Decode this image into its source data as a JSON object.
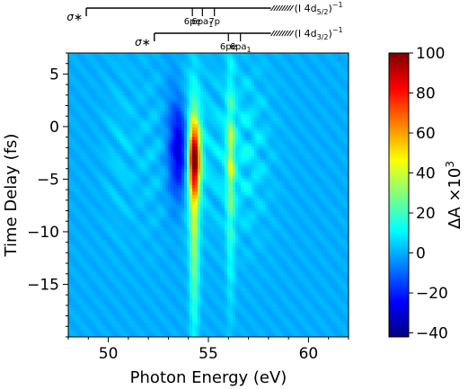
{
  "chart_data": {
    "type": "heatmap",
    "xlabel": "Photon Energy (eV)",
    "ylabel": "Time Delay (fs)",
    "colorbar_label": "ΔA ×10",
    "colorbar_label_sup": "3",
    "xlim": [
      48,
      62
    ],
    "ylim": [
      -20,
      7
    ],
    "x_ticks": [
      50,
      55,
      60
    ],
    "y_ticks": [
      5,
      0,
      -5,
      -10,
      -15
    ],
    "colorbar_range": [
      -42,
      100
    ],
    "colorbar_ticks": [
      100,
      80,
      60,
      40,
      20,
      0,
      -20,
      -40
    ],
    "colormap": "jet",
    "features": [
      {
        "name": "sigma-star-5/2 band",
        "x": 50.6,
        "amplitude": 8,
        "fringes": true
      },
      {
        "name": "sigma-star-3/2 band",
        "x": 52.3,
        "amplitude": 6,
        "fringes": true
      },
      {
        "name": "negative lobe",
        "x": 53.6,
        "amplitude": -38
      },
      {
        "name": "6pe 4d5/2 peak",
        "x": 54.3,
        "amplitude": 95
      },
      {
        "name": "6pe 4d3/2 peak",
        "x": 56.1,
        "amplitude": 30
      },
      {
        "name": "6pa1 4d3/2 band",
        "x": 56.9,
        "amplitude": 12,
        "fringes": true
      }
    ],
    "annotations": {
      "row1": {
        "sigma_label": "σ∗",
        "sigma_x": 48.9,
        "end_x": 59.2,
        "levels": [
          {
            "label": "6pe",
            "x": 54.2
          },
          {
            "label": "6pa",
            "sub": "1",
            "x": 54.7
          },
          {
            "label": "7p",
            "x": 55.3
          }
        ],
        "edge_label": "(I 4d",
        "edge_sub": "5/2",
        "edge_close": ")",
        "edge_sup": "−1"
      },
      "row2": {
        "sigma_label": "σ∗",
        "sigma_x": 52.3,
        "end_x": 59.2,
        "levels": [
          {
            "label": "6pe",
            "x": 56.0
          },
          {
            "label": "6pa",
            "sub": "1",
            "x": 56.6
          }
        ],
        "edge_label": "(I 4d",
        "edge_sub": "3/2",
        "edge_close": ")",
        "edge_sup": "−1"
      }
    }
  }
}
